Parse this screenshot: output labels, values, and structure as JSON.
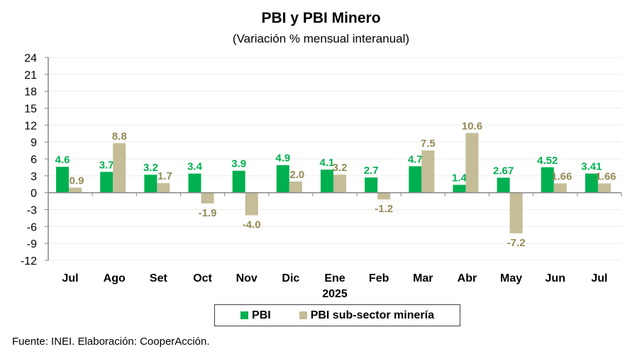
{
  "chart_data": {
    "type": "bar",
    "title": "PBI y PBI Minero",
    "subtitle": "(Variación % mensual interanual)",
    "xlabel": "",
    "ylabel": "",
    "categories": [
      "Jul",
      "Ago",
      "Set",
      "Oct",
      "Nov",
      "Dic",
      "Ene",
      "Feb",
      "Mar",
      "Abr",
      "May",
      "Jun",
      "Jul"
    ],
    "category_group_label": {
      "index": 6,
      "label": "2025"
    },
    "ylim": [
      -12,
      24
    ],
    "yticks": [
      24,
      21,
      18,
      15,
      12,
      9,
      6,
      3,
      0,
      -3,
      -6,
      -9,
      -12
    ],
    "grid": true,
    "legend_position": "bottom",
    "series": [
      {
        "name": "PBI",
        "color": "#00B050",
        "values": [
          4.6,
          3.7,
          3.2,
          3.4,
          3.9,
          4.9,
          4.1,
          2.7,
          4.7,
          1.4,
          2.67,
          4.52,
          3.41
        ],
        "labels": [
          "4.6",
          "3.7",
          "3.2",
          "3.4",
          "3.9",
          "4.9",
          "4.1",
          "2.7",
          "4.7",
          "1.4",
          "2.67",
          "4.52",
          "3.41"
        ]
      },
      {
        "name": "PBI sub-sector minería",
        "color": "#C4BD97",
        "label_color": "#948A54",
        "values": [
          0.9,
          8.8,
          1.7,
          -1.9,
          -4.0,
          2.0,
          3.2,
          -1.2,
          7.5,
          10.6,
          -7.2,
          1.66,
          1.66
        ],
        "labels": [
          "0.9",
          "8.8",
          "1.7",
          "-1.9",
          "-4.0",
          "2.0",
          "3.2",
          "-1.2",
          "7.5",
          "10.6",
          "-7.2",
          "1.66",
          "1.66"
        ]
      }
    ]
  },
  "source_note": "Fuente: INEI. Elaboración: CooperAcción."
}
